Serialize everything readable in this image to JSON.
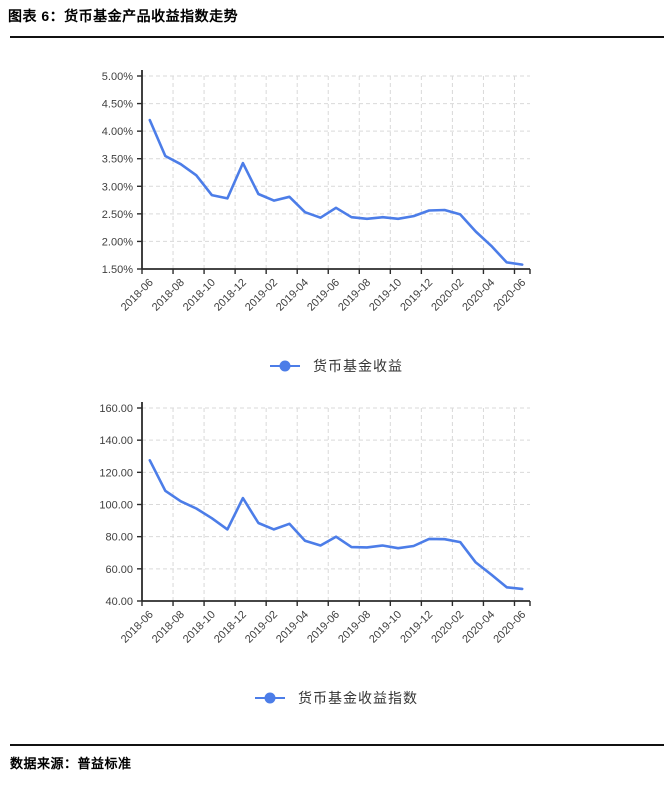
{
  "page": {
    "title": "图表 6：货币基金产品收益指数走势",
    "source_label": "数据来源：普益标准"
  },
  "colors": {
    "series_blue": "#4c7de8",
    "grid": "#d9d9d9",
    "axis": "#2b2b2b",
    "tick_text": "#404040"
  },
  "chart_data": [
    {
      "type": "line",
      "title": "",
      "xlabel": "",
      "ylabel": "",
      "grid": true,
      "legend_position": "bottom",
      "x": [
        "2018-06",
        "2018-07",
        "2018-08",
        "2018-09",
        "2018-10",
        "2018-11",
        "2018-12",
        "2019-01",
        "2019-02",
        "2019-03",
        "2019-04",
        "2019-05",
        "2019-06",
        "2019-07",
        "2019-08",
        "2019-09",
        "2019-10",
        "2019-11",
        "2019-12",
        "2020-01",
        "2020-02",
        "2020-03",
        "2020-04",
        "2020-05",
        "2020-06"
      ],
      "x_tick_labels": [
        "2018-06",
        "2018-08",
        "2018-10",
        "2018-12",
        "2019-02",
        "2019-04",
        "2019-06",
        "2019-08",
        "2019-10",
        "2019-12",
        "2020-02",
        "2020-04",
        "2020-06"
      ],
      "ylim": [
        1.5,
        5.0
      ],
      "ytick_values": [
        5.0,
        4.5,
        4.0,
        3.5,
        3.0,
        2.5,
        2.0,
        1.5
      ],
      "ytick_labels": [
        "5.00%",
        "4.50%",
        "4.00%",
        "3.50%",
        "3.00%",
        "2.50%",
        "2.00%",
        "1.50%"
      ],
      "series": [
        {
          "name": "货币基金收益",
          "values": [
            4.2,
            3.55,
            3.4,
            3.2,
            2.84,
            2.78,
            3.42,
            2.86,
            2.74,
            2.81,
            2.53,
            2.43,
            2.61,
            2.44,
            2.41,
            2.44,
            2.41,
            2.46,
            2.56,
            2.57,
            2.49,
            2.18,
            1.92,
            1.62,
            1.58
          ]
        }
      ]
    },
    {
      "type": "line",
      "title": "",
      "xlabel": "",
      "ylabel": "",
      "grid": true,
      "legend_position": "bottom",
      "x": [
        "2018-06",
        "2018-07",
        "2018-08",
        "2018-09",
        "2018-10",
        "2018-11",
        "2018-12",
        "2019-01",
        "2019-02",
        "2019-03",
        "2019-04",
        "2019-05",
        "2019-06",
        "2019-07",
        "2019-08",
        "2019-09",
        "2019-10",
        "2019-11",
        "2019-12",
        "2020-01",
        "2020-02",
        "2020-03",
        "2020-04",
        "2020-05",
        "2020-06"
      ],
      "x_tick_labels": [
        "2018-06",
        "2018-08",
        "2018-10",
        "2018-12",
        "2019-02",
        "2019-04",
        "2019-06",
        "2019-08",
        "2019-10",
        "2019-12",
        "2020-02",
        "2020-04",
        "2020-06"
      ],
      "ylim": [
        40,
        160
      ],
      "ytick_values": [
        160,
        140,
        120,
        100,
        80,
        60,
        40
      ],
      "ytick_labels": [
        "160.00",
        "140.00",
        "120.00",
        "100.00",
        "80.00",
        "60.00",
        "40.00"
      ],
      "series": [
        {
          "name": "货币基金收益指数",
          "values": [
            127.5,
            108.5,
            102.0,
            97.5,
            91.5,
            84.5,
            104.0,
            88.5,
            84.5,
            88.0,
            77.5,
            74.5,
            80.0,
            73.5,
            73.3,
            74.5,
            72.8,
            74.2,
            78.6,
            78.4,
            76.6,
            64.0,
            56.5,
            48.5,
            47.5
          ]
        }
      ]
    }
  ]
}
